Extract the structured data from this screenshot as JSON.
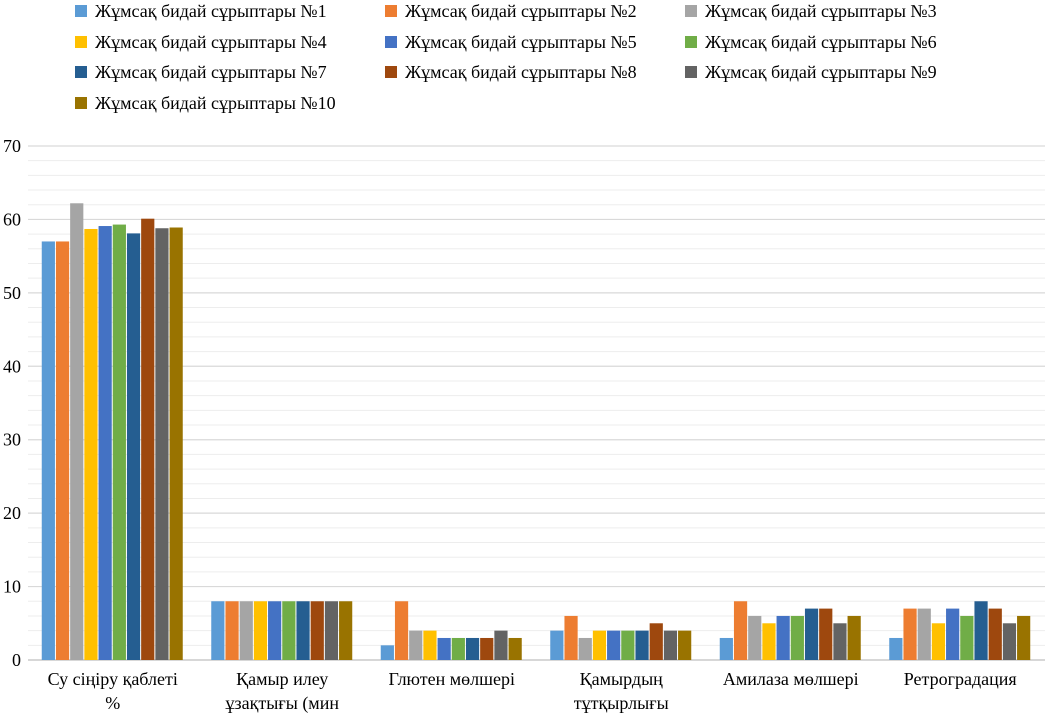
{
  "chart_data": {
    "type": "bar",
    "categories": [
      [
        "Су сіңіру қаблеті",
        "%"
      ],
      [
        "Қамыр илеу",
        "ұзақтығы (мин"
      ],
      [
        "Глютен мөлшері"
      ],
      [
        "Қамырдың",
        "тұтқырлығы"
      ],
      [
        "Амилаза мөлшері"
      ],
      [
        "Ретроградация"
      ]
    ],
    "series": [
      {
        "name": "Жұмсақ бидай сұрыптары №1",
        "color": "#5B9BD5",
        "values": [
          57,
          8,
          2,
          4,
          3,
          3
        ]
      },
      {
        "name": "Жұмсақ бидай сұрыптары №2",
        "color": "#ED7D31",
        "values": [
          57,
          8,
          8,
          6,
          8,
          7
        ]
      },
      {
        "name": "Жұмсақ бидай сұрыптары №3",
        "color": "#A5A5A5",
        "values": [
          62.2,
          8,
          4,
          3,
          6,
          7
        ]
      },
      {
        "name": "Жұмсақ бидай сұрыптары №4",
        "color": "#FFC000",
        "values": [
          58.7,
          8,
          4,
          4,
          5,
          5
        ]
      },
      {
        "name": "Жұмсақ бидай сұрыптары №5",
        "color": "#4472C4",
        "values": [
          59.1,
          8,
          3,
          4,
          6,
          7
        ]
      },
      {
        "name": "Жұмсақ бидай сұрыптары №6",
        "color": "#70AD47",
        "values": [
          59.3,
          8,
          3,
          4,
          6,
          6
        ]
      },
      {
        "name": "Жұмсақ бидай сұрыптары №7",
        "color": "#255E91",
        "values": [
          58.1,
          8,
          3,
          4,
          7,
          8
        ]
      },
      {
        "name": "Жұмсақ бидай сұрыптары №8",
        "color": "#9E480E",
        "values": [
          60.1,
          8,
          3,
          5,
          7,
          7
        ]
      },
      {
        "name": "Жұмсақ бидай сұрыптары №9",
        "color": "#636363",
        "values": [
          58.8,
          8,
          4,
          4,
          5,
          5
        ]
      },
      {
        "name": "Жұмсақ бидай сұрыптары №10",
        "color": "#997300",
        "values": [
          58.9,
          8,
          3,
          4,
          6,
          6
        ]
      }
    ],
    "yticks": [
      0,
      10,
      20,
      30,
      40,
      50,
      60,
      70
    ],
    "ylim": [
      0,
      70
    ],
    "grid": true,
    "legend_position": "top"
  }
}
